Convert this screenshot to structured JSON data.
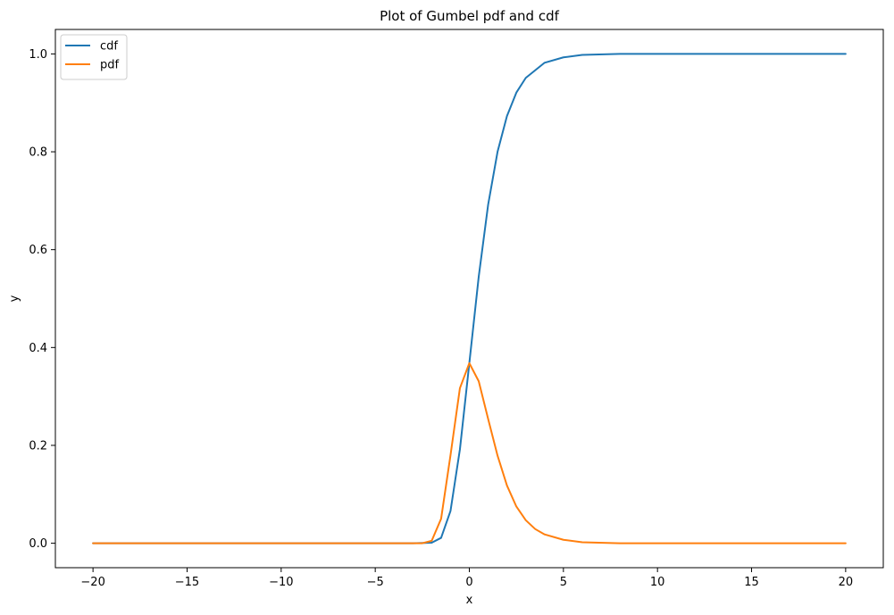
{
  "chart_data": {
    "type": "line",
    "title": "Plot of Gumbel pdf and cdf",
    "xlabel": "x",
    "ylabel": "y",
    "xlim": [
      -22,
      22
    ],
    "ylim": [
      -0.05,
      1.05
    ],
    "xticks": [
      -20,
      -15,
      -10,
      -5,
      0,
      5,
      10,
      15,
      20
    ],
    "xtick_labels": [
      "−20",
      "−15",
      "−10",
      "−5",
      "0",
      "5",
      "10",
      "15",
      "20"
    ],
    "yticks": [
      0.0,
      0.2,
      0.4,
      0.6,
      0.8,
      1.0
    ],
    "ytick_labels": [
      "0.0",
      "0.2",
      "0.4",
      "0.6",
      "0.8",
      "1.0"
    ],
    "grid": false,
    "legend_position": "top-left",
    "series": [
      {
        "name": "cdf",
        "color": "#1f77b4",
        "x": [
          -20,
          -5,
          -3,
          -2,
          -1.5,
          -1,
          -0.5,
          0,
          0.5,
          1,
          1.5,
          2,
          2.5,
          3,
          4,
          5,
          6,
          8,
          10,
          15,
          20
        ],
        "y": [
          0.0,
          0.0,
          0.0,
          0.001,
          0.011,
          0.066,
          0.192,
          0.368,
          0.545,
          0.692,
          0.8,
          0.873,
          0.921,
          0.951,
          0.982,
          0.993,
          0.998,
          1.0,
          1.0,
          1.0,
          1.0
        ]
      },
      {
        "name": "pdf",
        "color": "#ff7f0e",
        "x": [
          -20,
          -5,
          -3,
          -2.5,
          -2,
          -1.5,
          -1,
          -0.5,
          0,
          0.5,
          1,
          1.5,
          2,
          2.5,
          3,
          3.5,
          4,
          5,
          6,
          8,
          10,
          15,
          20
        ],
        "y": [
          0.0,
          0.0,
          0.0,
          0.0,
          0.005,
          0.05,
          0.18,
          0.317,
          0.368,
          0.331,
          0.254,
          0.179,
          0.118,
          0.075,
          0.047,
          0.029,
          0.018,
          0.007,
          0.002,
          0.0,
          0.0,
          0.0,
          0.0
        ]
      }
    ]
  }
}
